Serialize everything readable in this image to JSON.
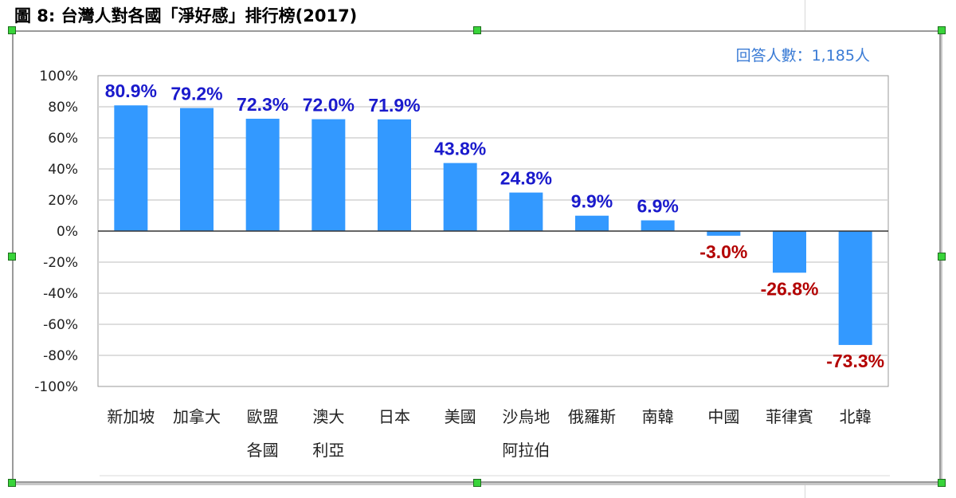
{
  "figure_title": "圖 8: 台灣人對各國「淨好感」排行榜(2017)",
  "colors": {
    "bar": "#3399ff",
    "positive_label": "#1a1acc",
    "negative_label": "#b30000",
    "gridline": "#d4d4d4",
    "note": "#3a7bd5"
  },
  "chart_data": {
    "type": "bar",
    "annotation": "回答人數：1,185人",
    "categories": [
      [
        "新加坡"
      ],
      [
        "加拿大"
      ],
      [
        "歐盟",
        "各國"
      ],
      [
        "澳大",
        "利亞"
      ],
      [
        "日本"
      ],
      [
        "美國"
      ],
      [
        "沙烏地",
        "阿拉伯"
      ],
      [
        "俄羅斯"
      ],
      [
        "南韓"
      ],
      [
        "中國"
      ],
      [
        "菲律賓"
      ],
      [
        "北韓"
      ]
    ],
    "values": [
      80.9,
      79.2,
      72.3,
      72.0,
      71.9,
      43.8,
      24.8,
      9.9,
      6.9,
      -3.0,
      -26.8,
      -73.3
    ],
    "data_labels": [
      "80.9%",
      "79.2%",
      "72.3%",
      "72.0%",
      "71.9%",
      "43.8%",
      "24.8%",
      "9.9%",
      "6.9%",
      "-3.0%",
      "-26.8%",
      "-73.3%"
    ],
    "yticks": [
      100,
      80,
      60,
      40,
      20,
      0,
      -20,
      -40,
      -60,
      -80,
      -100
    ],
    "ytick_labels": [
      "100%",
      "80%",
      "60%",
      "40%",
      "20%",
      "0%",
      "-20%",
      "-40%",
      "-60%",
      "-80%",
      "-100%"
    ],
    "ylim": [
      -100,
      100
    ],
    "grid": true,
    "legend": "none"
  }
}
